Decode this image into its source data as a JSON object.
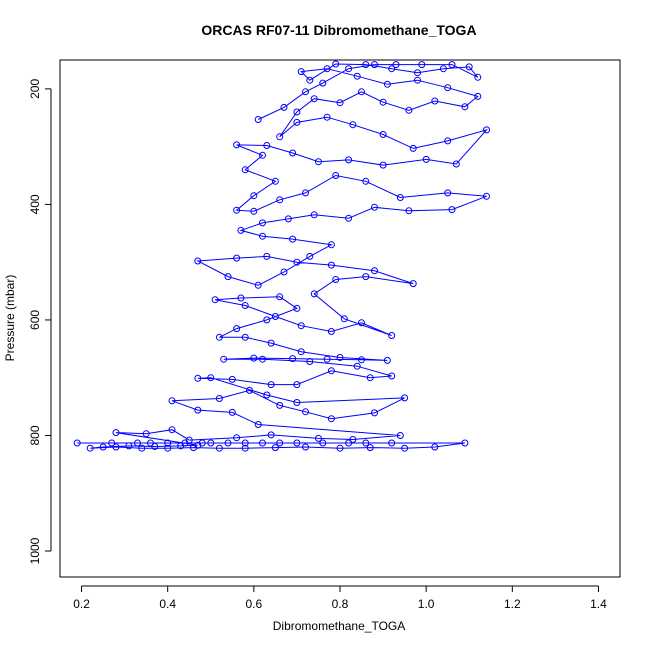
{
  "chart_data": {
    "type": "line",
    "title": "ORCAS RF07-11 Dibromomethane_TOGA",
    "xlabel": "Dibromomethane_TOGA",
    "ylabel": "Pressure (mbar)",
    "xlim": [
      0.15,
      1.45
    ],
    "ylim": [
      1045,
      150
    ],
    "y_reversed": true,
    "x_ticks": [
      "0.2",
      "0.4",
      "0.6",
      "0.8",
      "1.0",
      "1.2",
      "1.4"
    ],
    "y_ticks": [
      "200",
      "400",
      "600",
      "800",
      "1000"
    ],
    "grid": false,
    "legend": "none",
    "series_color": "#0000ff",
    "marker": "open-circle",
    "series": [
      {
        "points": [
          [
            0.19,
            813
          ],
          [
            0.27,
            813
          ],
          [
            0.33,
            813
          ],
          [
            0.36,
            813
          ],
          [
            0.4,
            813
          ],
          [
            0.44,
            813
          ],
          [
            0.48,
            813
          ],
          [
            0.5,
            813
          ],
          [
            0.54,
            813
          ],
          [
            0.58,
            813
          ],
          [
            0.62,
            813
          ],
          [
            0.66,
            813
          ],
          [
            0.7,
            813
          ],
          [
            0.76,
            813
          ],
          [
            0.82,
            813
          ],
          [
            0.86,
            813
          ],
          [
            0.92,
            813
          ],
          [
            1.09,
            813
          ],
          [
            1.02,
            820
          ],
          [
            0.95,
            822
          ],
          [
            0.87,
            821
          ],
          [
            0.8,
            822
          ],
          [
            0.72,
            820
          ],
          [
            0.65,
            821
          ],
          [
            0.58,
            822
          ],
          [
            0.52,
            822
          ],
          [
            0.46,
            821
          ],
          [
            0.4,
            822
          ],
          [
            0.34,
            822
          ],
          [
            0.28,
            820
          ],
          [
            0.22,
            822
          ],
          [
            0.25,
            820
          ],
          [
            0.31,
            818
          ],
          [
            0.37,
            819
          ],
          [
            0.43,
            818
          ],
          [
            0.47,
            817
          ],
          [
            0.28,
            795
          ],
          [
            0.35,
            797
          ],
          [
            0.41,
            790
          ],
          [
            0.45,
            808
          ],
          [
            0.56,
            804
          ],
          [
            0.64,
            799
          ],
          [
            0.75,
            805
          ],
          [
            0.83,
            807
          ],
          [
            0.94,
            800
          ],
          [
            0.61,
            781
          ],
          [
            0.55,
            760
          ],
          [
            0.47,
            756
          ],
          [
            0.41,
            740
          ],
          [
            0.52,
            736
          ],
          [
            0.59,
            722
          ],
          [
            0.66,
            748
          ],
          [
            0.72,
            759
          ],
          [
            0.78,
            771
          ],
          [
            0.88,
            761
          ],
          [
            0.95,
            735
          ],
          [
            0.7,
            743
          ],
          [
            0.63,
            730
          ],
          [
            0.5,
            700
          ],
          [
            0.47,
            701
          ],
          [
            0.55,
            703
          ],
          [
            0.64,
            712
          ],
          [
            0.7,
            712
          ],
          [
            0.78,
            688
          ],
          [
            0.87,
            700
          ],
          [
            0.92,
            697
          ],
          [
            0.84,
            680
          ],
          [
            0.73,
            672
          ],
          [
            0.62,
            668
          ],
          [
            0.53,
            668
          ],
          [
            0.6,
            666
          ],
          [
            0.69,
            667
          ],
          [
            0.77,
            668
          ],
          [
            0.85,
            669
          ],
          [
            0.91,
            670
          ],
          [
            0.8,
            665
          ],
          [
            0.71,
            655
          ],
          [
            0.64,
            640
          ],
          [
            0.58,
            630
          ],
          [
            0.52,
            630
          ],
          [
            0.56,
            615
          ],
          [
            0.63,
            600
          ],
          [
            0.7,
            580
          ],
          [
            0.66,
            560
          ],
          [
            0.57,
            562
          ],
          [
            0.51,
            565
          ],
          [
            0.58,
            575
          ],
          [
            0.65,
            594
          ],
          [
            0.71,
            610
          ],
          [
            0.78,
            620
          ],
          [
            0.85,
            605
          ],
          [
            0.92,
            627
          ],
          [
            0.81,
            598
          ],
          [
            0.74,
            555
          ],
          [
            0.79,
            530
          ],
          [
            0.86,
            525
          ],
          [
            0.97,
            537
          ],
          [
            0.88,
            515
          ],
          [
            0.78,
            505
          ],
          [
            0.7,
            500
          ],
          [
            0.63,
            490
          ],
          [
            0.56,
            493
          ],
          [
            0.47,
            498
          ],
          [
            0.54,
            525
          ],
          [
            0.61,
            540
          ],
          [
            0.67,
            517
          ],
          [
            0.73,
            490
          ],
          [
            0.78,
            470
          ],
          [
            0.69,
            460
          ],
          [
            0.62,
            455
          ],
          [
            0.57,
            445
          ],
          [
            0.62,
            432
          ],
          [
            0.68,
            425
          ],
          [
            0.74,
            418
          ],
          [
            0.82,
            424
          ],
          [
            0.88,
            405
          ],
          [
            0.96,
            411
          ],
          [
            1.06,
            409
          ],
          [
            1.14,
            386
          ],
          [
            1.05,
            380
          ],
          [
            0.94,
            388
          ],
          [
            0.86,
            360
          ],
          [
            0.79,
            350
          ],
          [
            0.72,
            380
          ],
          [
            0.66,
            392
          ],
          [
            0.6,
            412
          ],
          [
            0.56,
            410
          ],
          [
            0.6,
            385
          ],
          [
            0.65,
            360
          ],
          [
            0.58,
            340
          ],
          [
            0.62,
            315
          ],
          [
            0.56,
            297
          ],
          [
            0.63,
            298
          ],
          [
            0.69,
            311
          ],
          [
            0.75,
            326
          ],
          [
            0.82,
            323
          ],
          [
            0.9,
            332
          ],
          [
            1.0,
            322
          ],
          [
            1.07,
            330
          ],
          [
            1.14,
            271
          ],
          [
            1.05,
            290
          ],
          [
            0.97,
            303
          ],
          [
            0.9,
            279
          ],
          [
            0.83,
            262
          ],
          [
            0.77,
            249
          ],
          [
            0.7,
            258
          ],
          [
            0.66,
            283
          ],
          [
            0.7,
            240
          ],
          [
            0.74,
            217
          ],
          [
            0.8,
            224
          ],
          [
            0.85,
            205
          ],
          [
            0.9,
            223
          ],
          [
            0.96,
            237
          ],
          [
            1.02,
            221
          ],
          [
            1.09,
            231
          ],
          [
            1.12,
            213
          ],
          [
            1.05,
            198
          ],
          [
            0.98,
            185
          ],
          [
            0.91,
            192
          ],
          [
            0.84,
            178
          ],
          [
            0.77,
            165
          ],
          [
            0.71,
            170
          ],
          [
            0.73,
            185
          ],
          [
            0.79,
            157
          ],
          [
            0.86,
            158
          ],
          [
            0.92,
            165
          ],
          [
            0.98,
            172
          ],
          [
            1.04,
            165
          ],
          [
            1.1,
            162
          ],
          [
            1.12,
            180
          ],
          [
            1.06,
            158
          ],
          [
            0.99,
            158
          ],
          [
            0.93,
            158
          ],
          [
            0.88,
            158
          ],
          [
            0.82,
            165
          ],
          [
            0.76,
            190
          ],
          [
            0.72,
            205
          ],
          [
            0.67,
            232
          ],
          [
            0.61,
            253
          ]
        ]
      }
    ]
  }
}
